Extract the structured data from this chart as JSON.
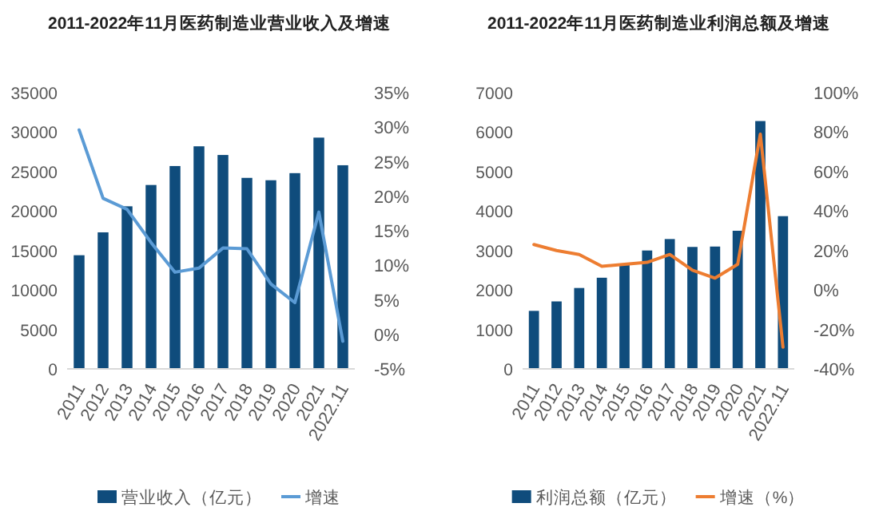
{
  "chart_data": [
    {
      "type": "bar",
      "title": "2011-2022年11月医药制造业营业收入及增速",
      "categories": [
        "2011",
        "2012",
        "2013",
        "2014",
        "2015",
        "2016",
        "2017",
        "2018",
        "2019",
        "2020",
        "2021",
        "2022.11"
      ],
      "series": [
        {
          "name": "营业收入（亿元）",
          "color": "#0f4c7c",
          "values": [
            14400,
            17300,
            20600,
            23300,
            25700,
            28200,
            27100,
            24200,
            23900,
            24800,
            29300,
            25800
          ]
        },
        {
          "name": "增速",
          "type": "line",
          "axis": "y2",
          "color": "#5b9bd5",
          "values": [
            29.6,
            19.7,
            18.1,
            13.3,
            9.0,
            9.6,
            12.5,
            12.4,
            7.3,
            4.6,
            17.7,
            -1.0
          ]
        }
      ],
      "ylim": [
        0,
        35000
      ],
      "yticks": [
        0,
        5000,
        10000,
        15000,
        20000,
        25000,
        30000,
        35000
      ],
      "y2lim": [
        -5,
        35
      ],
      "y2ticks": [
        {
          "value": -5,
          "label": "-5%"
        },
        {
          "value": 0,
          "label": "0%"
        },
        {
          "value": 5,
          "label": "5%"
        },
        {
          "value": 10,
          "label": "10%"
        },
        {
          "value": 15,
          "label": "15%"
        },
        {
          "value": 20,
          "label": "20%"
        },
        {
          "value": 25,
          "label": "25%"
        },
        {
          "value": 30,
          "label": "30%"
        },
        {
          "value": 35,
          "label": "35%"
        }
      ],
      "legend": "bottom"
    },
    {
      "type": "bar",
      "title": "2011-2022年11月医药制造业利润总额及增速",
      "categories": [
        "2011",
        "2012",
        "2013",
        "2014",
        "2015",
        "2016",
        "2017",
        "2018",
        "2019",
        "2020",
        "2021",
        "2022.11"
      ],
      "series": [
        {
          "name": "利润总额（亿元）",
          "color": "#0f4c7c",
          "values": [
            1470,
            1710,
            2050,
            2310,
            2630,
            3000,
            3290,
            3090,
            3100,
            3500,
            6280,
            3870
          ]
        },
        {
          "name": "增速（%）",
          "type": "line",
          "axis": "y2",
          "color": "#ed7d31",
          "values": [
            23,
            20,
            18,
            12,
            13,
            14,
            18,
            10,
            6,
            13,
            79,
            -29
          ]
        }
      ],
      "ylim": [
        0,
        7000
      ],
      "yticks": [
        0,
        1000,
        2000,
        3000,
        4000,
        5000,
        6000,
        7000
      ],
      "y2lim": [
        -40,
        100
      ],
      "y2ticks": [
        {
          "value": -40,
          "label": "-40%"
        },
        {
          "value": -20,
          "label": "-20%"
        },
        {
          "value": 0,
          "label": "0%"
        },
        {
          "value": 20,
          "label": "20%"
        },
        {
          "value": 40,
          "label": "40%"
        },
        {
          "value": 60,
          "label": "60%"
        },
        {
          "value": 80,
          "label": "80%"
        },
        {
          "value": 100,
          "label": "100%"
        }
      ],
      "legend": "bottom"
    }
  ]
}
